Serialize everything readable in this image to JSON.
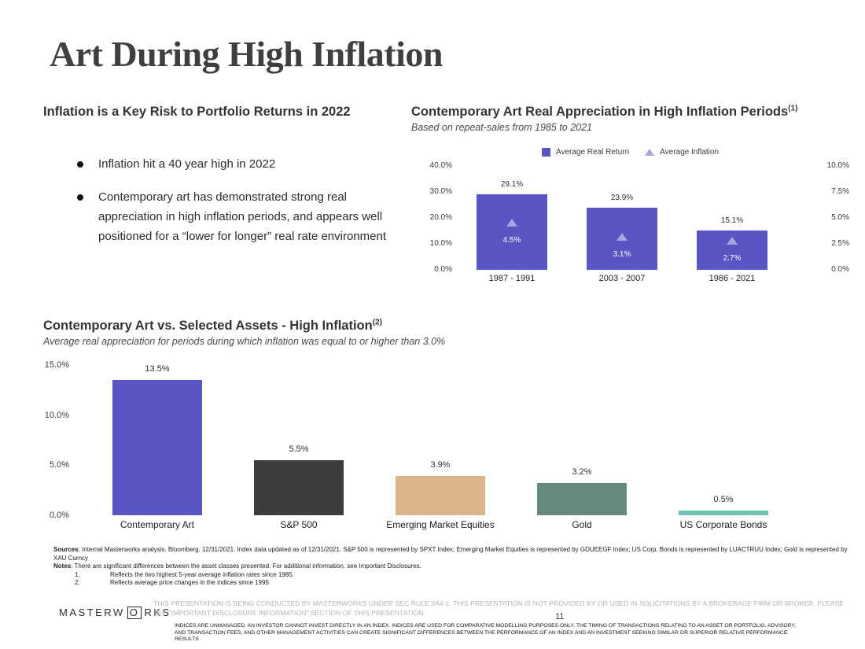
{
  "slide": {
    "title": "Art During High Inflation",
    "page_number": "11"
  },
  "left_panel": {
    "heading": "Inflation is a Key Risk to Portfolio Returns in 2022",
    "bullets": [
      "Inflation hit a 40 year high in 2022",
      "Contemporary art has demonstrated strong real appreciation in high inflation periods, and appears well positioned for a “lower for longer” real rate environment"
    ]
  },
  "chart_data": [
    {
      "type": "bar",
      "title": "Contemporary Art Real Appreciation in High Inflation Periods",
      "title_superscript": "(1)",
      "subtitle": "Based on repeat-sales from 1985 to 2021",
      "categories": [
        "1987 - 1991",
        "2003 - 2007",
        "1986 - 2021"
      ],
      "series": [
        {
          "name": "Average Real Return",
          "marker": "square",
          "color": "#5956c4",
          "axis": "left",
          "values": [
            29.1,
            23.9,
            15.1
          ]
        },
        {
          "name": "Average Inflation",
          "marker": "triangle",
          "color": "#a8a5e1",
          "axis": "right",
          "values": [
            4.5,
            3.1,
            2.7
          ]
        }
      ],
      "left_axis_ticks": [
        "40.0%",
        "30.0%",
        "20.0%",
        "10.0%",
        "0.0%"
      ],
      "right_axis_ticks": [
        "10.0%",
        "7.5%",
        "5.0%",
        "2.5%",
        "0.0%"
      ],
      "left_axis_range": [
        0,
        40
      ],
      "right_axis_range": [
        0,
        10
      ],
      "legend_position": "top",
      "grid": false
    },
    {
      "type": "bar",
      "title": "Contemporary Art vs. Selected Assets - High Inflation",
      "title_superscript": "(2)",
      "subtitle": "Average real appreciation for periods during which inflation was equal to or higher than 3.0%",
      "categories": [
        "Contemporary Art",
        "S&P 500",
        "Emerging Market Equities",
        "Gold",
        "US Corporate Bonds"
      ],
      "values": [
        13.5,
        5.5,
        3.9,
        3.2,
        0.5
      ],
      "value_labels": [
        "13.5%",
        "5.5%",
        "3.9%",
        "3.2%",
        "0.5%"
      ],
      "bar_colors": [
        "#5956c4",
        "#3d3d3d",
        "#dcb58b",
        "#64897f",
        "#6bc4b4"
      ],
      "axis_ticks": [
        "15.0%",
        "10.0%",
        "5.0%",
        "0.0%"
      ],
      "axis_range": [
        0,
        15
      ],
      "legend_position": "none",
      "grid": false
    }
  ],
  "footnotes": {
    "sources_label": "Sources",
    "sources_text": ": Internal Masterworks analysis. Bloomberg. 12/31/2021. Index data updated as of 12/31/2021. S&P 500 is represented by SPXT Index; Emerging Market Equities is represented by GDUEEGF Index; US Corp. Bonds is represented by LUACTRUU Index; Gold is represented by XAU Curncy",
    "notes_label": "Notes",
    "notes_text": ": There are significant differences between the asset classes presented. For additional information, see Important Disclosures.",
    "numbered_notes": [
      {
        "num": "1.",
        "text": "Reflects the two highest 5-year average inflation rates since 1985."
      },
      {
        "num": "2.",
        "text": "Reflects average price changes in the indices since 1995"
      }
    ]
  },
  "footer": {
    "logo_prefix": "MASTERW",
    "logo_o": "O",
    "logo_suffix": "RKS",
    "disclaimer_primary": "THIS PRESENTATION  IS BEING CONDUCTED BY MASTERWORKS UNDER SEC RULE 3A4-1. THIS PRESENTATION  IS NOT PROVIDED BY OR USED IN SOLICITATIONS BY A BROKERAGE FIRM OR BROKER. PLEASE SEE “IMPORTANT DISCLOSURE INFORMATION” SECTION OF THIS PRESENTATION",
    "disclaimer_secondary": "INDICES ARE UNMANAGED. AN INVESTOR CANNOT INVEST DIRECTLY IN AN INDEX. INDICES ARE USED FOR COMPARATIVE MODELLING PURPOSES ONLY. THE TIMING OF TRANSACTIONS RELATING TO AN ASSET OR PORTFOLIO, ADVISORY, AND TRANSACTION FEES, AND OTHER MANAGEMENT ACTIVITIES CAN CREATE SIGNIFICANT DIFFERENCES BETWEEN THE PERFORMANCE OF AN INDEX AND AN INVESTMENT SEEKING SIMILAR OR SUPERIOR RELATIVE PERFORMANCE RESULTS"
  }
}
